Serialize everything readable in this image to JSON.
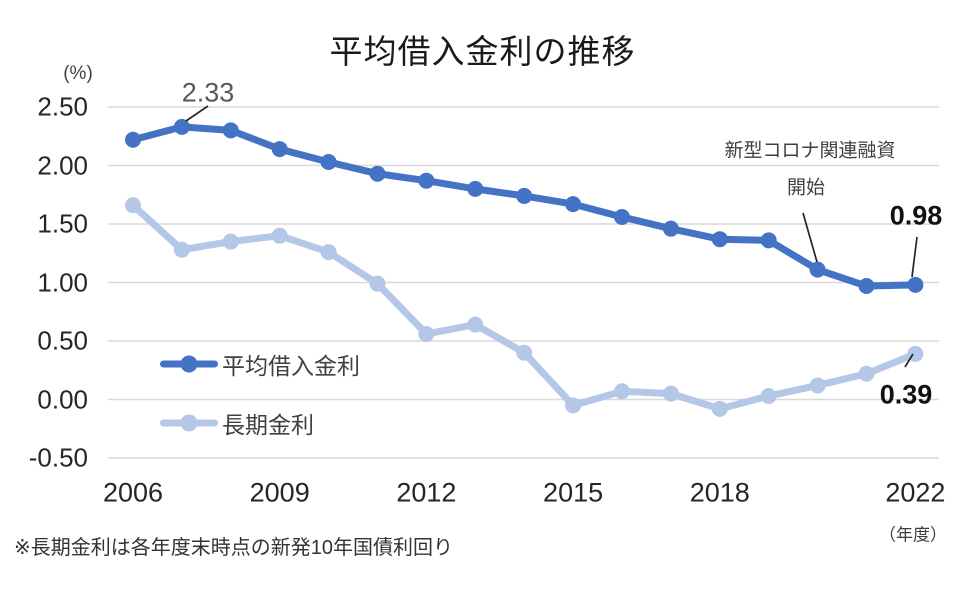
{
  "chart_data": {
    "type": "line",
    "title": "平均借入金利の推移",
    "y_unit_label": "(%)",
    "x_unit_label": "（年度）",
    "footnote": "※長期金利は各年度末時点の新発10年国債利回り",
    "grid": true,
    "legend_position": "inside-left",
    "x": [
      2006,
      2007,
      2008,
      2009,
      2010,
      2011,
      2012,
      2013,
      2014,
      2015,
      2016,
      2017,
      2018,
      2019,
      2020,
      2021,
      2022
    ],
    "x_tick_years": [
      2006,
      2009,
      2012,
      2015,
      2018,
      2022
    ],
    "x_tick_labels": [
      "2006",
      "2009",
      "2012",
      "2015",
      "2018",
      "2022"
    ],
    "y_tick_values": [
      2.5,
      2.0,
      1.5,
      1.0,
      0.5,
      0.0,
      -0.5
    ],
    "y_tick_labels": [
      "2.50",
      "2.00",
      "1.50",
      "1.00",
      "0.50",
      "0.00",
      "-0.50"
    ],
    "ylim": [
      -0.5,
      2.55
    ],
    "series": [
      {
        "name": "平均借入金利",
        "color": "#4472C4",
        "values": [
          2.22,
          2.33,
          2.3,
          2.14,
          2.03,
          1.93,
          1.87,
          1.8,
          1.74,
          1.67,
          1.56,
          1.46,
          1.37,
          1.36,
          1.11,
          0.97,
          0.98
        ]
      },
      {
        "name": "長期金利",
        "color": "#B4C7E7",
        "values": [
          1.66,
          1.28,
          1.35,
          1.4,
          1.26,
          0.99,
          0.56,
          0.64,
          0.4,
          -0.05,
          0.07,
          0.05,
          -0.08,
          0.03,
          0.12,
          0.22,
          0.39
        ]
      }
    ],
    "annotations": [
      {
        "id": "peak-2007",
        "text": "2.33",
        "series": 0,
        "year": 2007
      },
      {
        "id": "covid-note",
        "text": "新型コロナ関連融資",
        "text2": "開始",
        "series": 0,
        "year": 2020
      },
      {
        "id": "end-average",
        "text": "0.98",
        "series": 0,
        "year": 2022
      },
      {
        "id": "end-longterm",
        "text": "0.39",
        "series": 1,
        "year": 2022
      }
    ],
    "colors": {
      "grid": "#D9D9D9",
      "leader_line": "#262626"
    }
  }
}
